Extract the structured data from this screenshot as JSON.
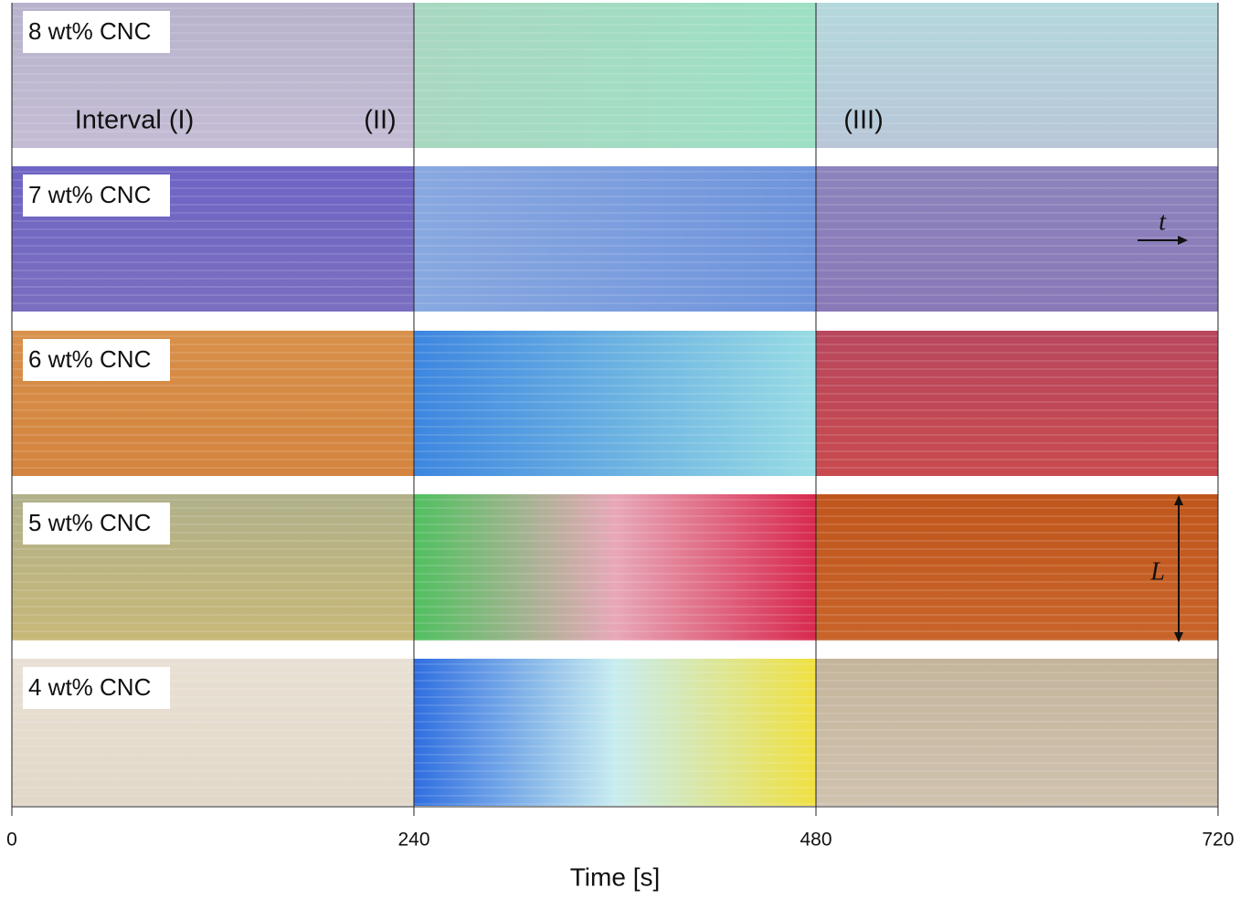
{
  "chart_data": {
    "type": "kymograph",
    "xlabel": "Time [s]",
    "xlim": [
      0,
      720
    ],
    "xticks": [
      0,
      240,
      480,
      720
    ],
    "intervals": [
      {
        "label": "Interval (I)",
        "start": 0,
        "end": 240
      },
      {
        "label": "(II)",
        "start": 240,
        "end": 480
      },
      {
        "label": "(III)",
        "start": 480,
        "end": 720
      }
    ],
    "panels": [
      {
        "label": "8 wt% CNC",
        "colors": [
          [
            "#b8b2cc",
            "#c4bcd4"
          ],
          [
            "#a8d8c0",
            "#9ee0c4"
          ],
          [
            "#b4d8dc",
            "#b8c6d8"
          ]
        ]
      },
      {
        "label": "7 wt% CNC",
        "colors": [
          [
            "#6e64c4",
            "#7a6ec0"
          ],
          [
            "#88a8e0",
            "#6f94dc"
          ],
          [
            "#8c84bc",
            "#8a78b8"
          ]
        ]
      },
      {
        "label": "6 wt% CNC",
        "colors": [
          [
            "#d8904a",
            "#d4843e"
          ],
          [
            "#3d86e0",
            "#98dce4"
          ],
          [
            "#b8475e",
            "#c84a4e"
          ]
        ]
      },
      {
        "label": "5 wt% CNC",
        "colors": [
          [
            "#b0b08a",
            "#c8b878"
          ],
          [
            "#50c060",
            "#e8a8b8",
            "#d8284e"
          ],
          [
            "#c0561c",
            "#c8642a"
          ]
        ]
      },
      {
        "label": "4 wt% CNC",
        "colors": [
          [
            "#e8e0d4",
            "#e2d8c8"
          ],
          [
            "#2f6ee0",
            "#c8ecf0",
            "#f0e040"
          ],
          [
            "#c4b49c",
            "#cfc2ae"
          ]
        ]
      }
    ],
    "annotations": [
      "t",
      "L"
    ]
  }
}
